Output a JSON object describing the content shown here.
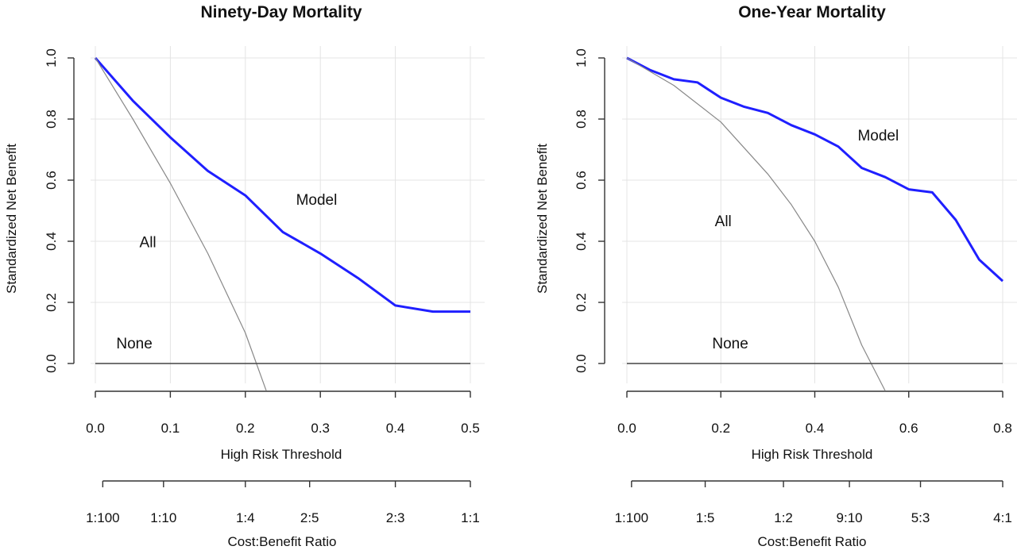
{
  "chart_data": [
    {
      "type": "line",
      "title": "Ninety-Day Mortality",
      "xlabel": "High Risk Threshold",
      "ylabel": "Standardized Net Benefit",
      "xlim": [
        0,
        0.5
      ],
      "ylim": [
        0,
        1
      ],
      "xticks": [
        "0.0",
        "0.1",
        "0.2",
        "0.3",
        "0.4",
        "0.5"
      ],
      "yticks": [
        "0.0",
        "0.2",
        "0.4",
        "0.6",
        "0.8",
        "1.0"
      ],
      "grid": true,
      "secondary_axis": {
        "label": "Cost:Benefit Ratio",
        "ticks": [
          {
            "x": 0.0099,
            "label": "1:100"
          },
          {
            "x": 0.0909,
            "label": "1:10"
          },
          {
            "x": 0.2,
            "label": "1:4"
          },
          {
            "x": 0.2857,
            "label": "2:5"
          },
          {
            "x": 0.4,
            "label": "2:3"
          },
          {
            "x": 0.5,
            "label": "1:1"
          }
        ]
      },
      "series": [
        {
          "name": "Model",
          "color": "#1f1fff",
          "x": [
            0,
            0.05,
            0.1,
            0.15,
            0.2,
            0.25,
            0.3,
            0.35,
            0.4,
            0.45,
            0.5
          ],
          "y": [
            1.0,
            0.86,
            0.74,
            0.63,
            0.55,
            0.43,
            0.36,
            0.28,
            0.19,
            0.17,
            0.17
          ]
        },
        {
          "name": "All",
          "color": "#888888",
          "x": [
            0,
            0.05,
            0.1,
            0.15,
            0.2,
            0.228
          ],
          "y": [
            1.0,
            0.8,
            0.59,
            0.36,
            0.1,
            -0.09
          ]
        },
        {
          "name": "None",
          "color": "#444444",
          "x": [
            0,
            0.5
          ],
          "y": [
            0,
            0
          ]
        }
      ],
      "annotations": [
        {
          "text": "Model",
          "x": 0.295,
          "y": 0.52
        },
        {
          "text": "All",
          "x": 0.07,
          "y": 0.38
        },
        {
          "text": "None",
          "x": 0.052,
          "y": 0.05
        }
      ]
    },
    {
      "type": "line",
      "title": "One-Year Mortality",
      "xlabel": "High Risk Threshold",
      "ylabel": "Standardized Net Benefit",
      "xlim": [
        0,
        0.8
      ],
      "ylim": [
        0,
        1
      ],
      "xticks": [
        "0.0",
        "0.2",
        "0.4",
        "0.6",
        "0.8"
      ],
      "yticks": [
        "0.0",
        "0.2",
        "0.4",
        "0.6",
        "0.8",
        "1.0"
      ],
      "grid": true,
      "secondary_axis": {
        "label": "Cost:Benefit Ratio",
        "ticks": [
          {
            "x": 0.0099,
            "label": "1:100"
          },
          {
            "x": 0.1667,
            "label": "1:5"
          },
          {
            "x": 0.3333,
            "label": "1:2"
          },
          {
            "x": 0.4737,
            "label": "9:10"
          },
          {
            "x": 0.625,
            "label": "5:3"
          },
          {
            "x": 0.8,
            "label": "4:1"
          }
        ]
      },
      "series": [
        {
          "name": "Model",
          "color": "#1f1fff",
          "x": [
            0,
            0.05,
            0.1,
            0.15,
            0.2,
            0.25,
            0.3,
            0.35,
            0.4,
            0.45,
            0.5,
            0.55,
            0.6,
            0.65,
            0.7,
            0.75,
            0.8
          ],
          "y": [
            1.0,
            0.96,
            0.93,
            0.92,
            0.87,
            0.84,
            0.82,
            0.78,
            0.75,
            0.71,
            0.64,
            0.61,
            0.57,
            0.56,
            0.47,
            0.34,
            0.27
          ]
        },
        {
          "name": "All",
          "color": "#888888",
          "x": [
            0,
            0.1,
            0.2,
            0.3,
            0.35,
            0.4,
            0.45,
            0.5,
            0.55
          ],
          "y": [
            1.0,
            0.91,
            0.79,
            0.62,
            0.52,
            0.4,
            0.25,
            0.06,
            -0.09
          ]
        },
        {
          "name": "None",
          "color": "#444444",
          "x": [
            0,
            0.8
          ],
          "y": [
            0,
            0
          ]
        }
      ],
      "annotations": [
        {
          "text": "Model",
          "x": 0.535,
          "y": 0.73
        },
        {
          "text": "All",
          "x": 0.205,
          "y": 0.45
        },
        {
          "text": "None",
          "x": 0.22,
          "y": 0.05
        }
      ]
    }
  ]
}
